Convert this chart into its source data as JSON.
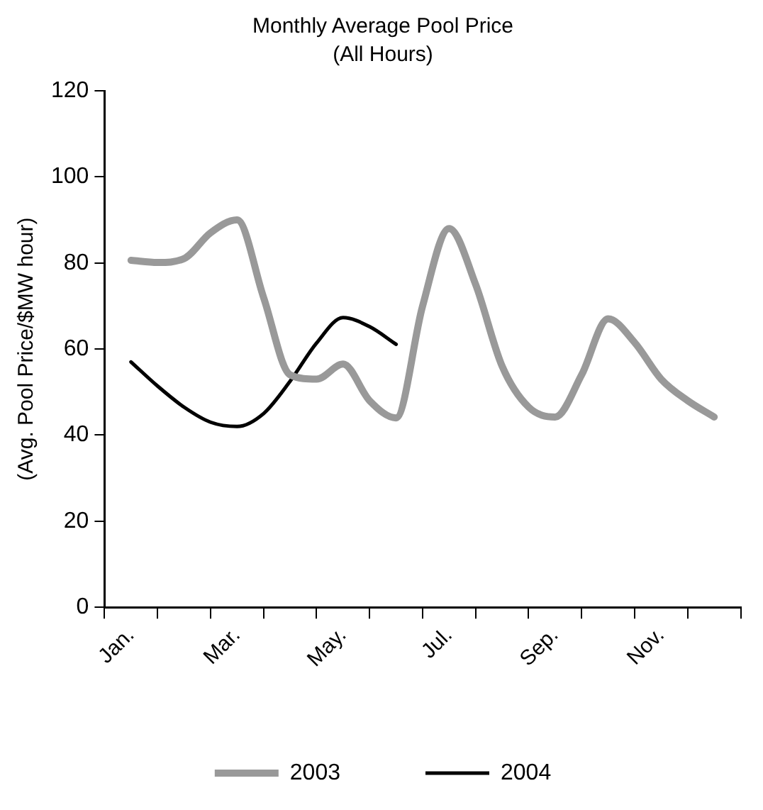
{
  "chart_data": {
    "type": "line",
    "title": "Monthly Average Pool Price",
    "subtitle": "(All Hours)",
    "ylabel": "(Avg. Pool Price/$MW hour)",
    "categories": [
      null,
      "Jan.",
      null,
      null,
      null,
      "Mar.",
      null,
      null,
      null,
      "May.",
      null,
      null,
      null,
      "Jul.",
      null,
      null,
      null,
      "Sep.",
      null,
      null,
      null,
      "Nov.",
      null,
      null,
      null
    ],
    "ylim": [
      0,
      120
    ],
    "yticks": [
      0,
      20,
      40,
      60,
      80,
      100,
      120
    ],
    "grid": false,
    "legend": "bottom",
    "marker": "none",
    "line_style": "solid",
    "series": [
      {
        "name": "2003",
        "color": "#999999",
        "values": [
          null,
          80.6,
          80.1,
          81,
          87,
          90,
          72,
          54,
          53,
          56.5,
          48,
          44,
          70,
          88,
          75,
          56,
          46.5,
          44.2,
          54,
          67,
          61.5,
          53,
          48,
          44.2,
          null
        ]
      },
      {
        "name": "2004",
        "color": "#000000",
        "values": [
          null,
          57,
          51.4,
          46.5,
          43,
          42,
          45,
          52.5,
          61.4,
          67.3,
          65.2,
          61.1,
          null,
          null,
          null,
          null,
          null,
          null,
          null,
          null,
          null,
          null,
          null,
          null,
          null
        ]
      }
    ]
  }
}
